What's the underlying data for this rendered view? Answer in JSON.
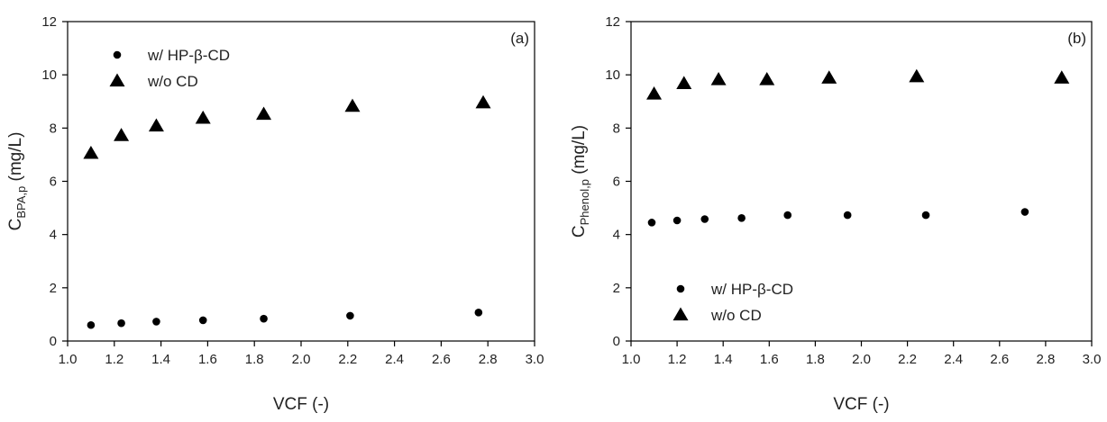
{
  "chart_data": [
    {
      "type": "scatter",
      "panel_label": "(a)",
      "xlabel": "VCF (-)",
      "ylabel": {
        "main": "C",
        "sub": "BPA,p",
        "unit": " (mg/L)"
      },
      "xlim": [
        1.0,
        3.0
      ],
      "ylim": [
        0,
        12
      ],
      "xticks": [
        "1.0",
        "1.2",
        "1.4",
        "1.6",
        "1.8",
        "2.0",
        "2.2",
        "2.4",
        "2.6",
        "2.8",
        "3.0"
      ],
      "yticks": [
        "0",
        "2",
        "4",
        "6",
        "8",
        "10",
        "12"
      ],
      "grid": false,
      "legend_placement": "top-left",
      "series": [
        {
          "name": "w/ HP-β-CD",
          "marker": "circle",
          "x": [
            1.1,
            1.23,
            1.38,
            1.58,
            1.84,
            2.21,
            2.76
          ],
          "y": [
            0.6,
            0.67,
            0.73,
            0.78,
            0.84,
            0.95,
            1.07
          ]
        },
        {
          "name": "w/o CD",
          "marker": "triangle",
          "x": [
            1.1,
            1.23,
            1.38,
            1.58,
            1.84,
            2.22,
            2.78
          ],
          "y": [
            7.05,
            7.72,
            8.08,
            8.37,
            8.52,
            8.82,
            8.95
          ]
        }
      ]
    },
    {
      "type": "scatter",
      "panel_label": "(b)",
      "xlabel": "VCF (-)",
      "ylabel": {
        "main": "C",
        "sub": "Phenol,p",
        "unit": " (mg/L)"
      },
      "xlim": [
        1.0,
        3.0
      ],
      "ylim": [
        0,
        12
      ],
      "xticks": [
        "1.0",
        "1.2",
        "1.4",
        "1.6",
        "1.8",
        "2.0",
        "2.2",
        "2.4",
        "2.6",
        "2.8",
        "3.0"
      ],
      "yticks": [
        "0",
        "2",
        "4",
        "6",
        "8",
        "10",
        "12"
      ],
      "grid": false,
      "legend_placement": "bottom-left",
      "series": [
        {
          "name": "w/ HP-β-CD",
          "marker": "circle",
          "x": [
            1.09,
            1.2,
            1.32,
            1.48,
            1.68,
            1.94,
            2.28,
            2.71
          ],
          "y": [
            4.45,
            4.53,
            4.58,
            4.62,
            4.73,
            4.73,
            4.73,
            4.85
          ]
        },
        {
          "name": "w/o CD",
          "marker": "triangle",
          "x": [
            1.1,
            1.23,
            1.38,
            1.59,
            1.86,
            2.24,
            2.87
          ],
          "y": [
            9.28,
            9.67,
            9.82,
            9.82,
            9.88,
            9.93,
            9.88
          ]
        }
      ]
    }
  ]
}
